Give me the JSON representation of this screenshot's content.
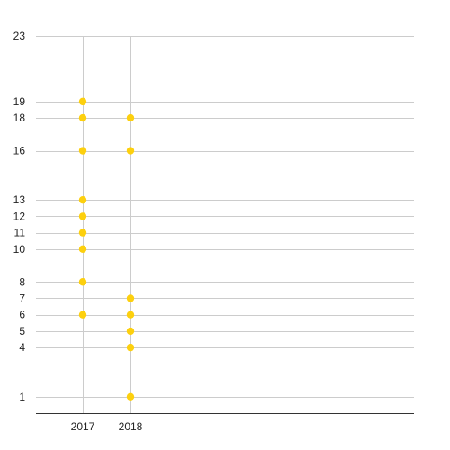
{
  "chart_data": {
    "type": "scatter",
    "title": "",
    "xlabel": "",
    "ylabel": "",
    "categories": [
      "2017",
      "2018"
    ],
    "x_tick_labels": [
      "2017",
      "2018"
    ],
    "y_tick_labels": [
      "1",
      "4",
      "5",
      "6",
      "7",
      "8",
      "10",
      "11",
      "12",
      "13",
      "16",
      "18",
      "19",
      "23"
    ],
    "y_ticks": [
      1,
      4,
      5,
      6,
      7,
      8,
      10,
      11,
      12,
      13,
      16,
      18,
      19,
      23
    ],
    "ylim": [
      0,
      23
    ],
    "grid": true,
    "legend": "none",
    "series": [
      {
        "points": [
          {
            "x": "2017",
            "y": 19
          },
          {
            "x": "2017",
            "y": 18
          },
          {
            "x": "2017",
            "y": 16
          },
          {
            "x": "2017",
            "y": 13
          },
          {
            "x": "2017",
            "y": 12
          },
          {
            "x": "2017",
            "y": 11
          },
          {
            "x": "2017",
            "y": 10
          },
          {
            "x": "2017",
            "y": 8
          },
          {
            "x": "2017",
            "y": 6
          },
          {
            "x": "2018",
            "y": 18
          },
          {
            "x": "2018",
            "y": 16
          },
          {
            "x": "2018",
            "y": 7
          },
          {
            "x": "2018",
            "y": 6
          },
          {
            "x": "2018",
            "y": 5
          },
          {
            "x": "2018",
            "y": 4
          },
          {
            "x": "2018",
            "y": 1
          }
        ]
      }
    ],
    "colors": {
      "point": "#fdd00e",
      "gridline": "#cccccc",
      "baseline": "#333333"
    }
  }
}
